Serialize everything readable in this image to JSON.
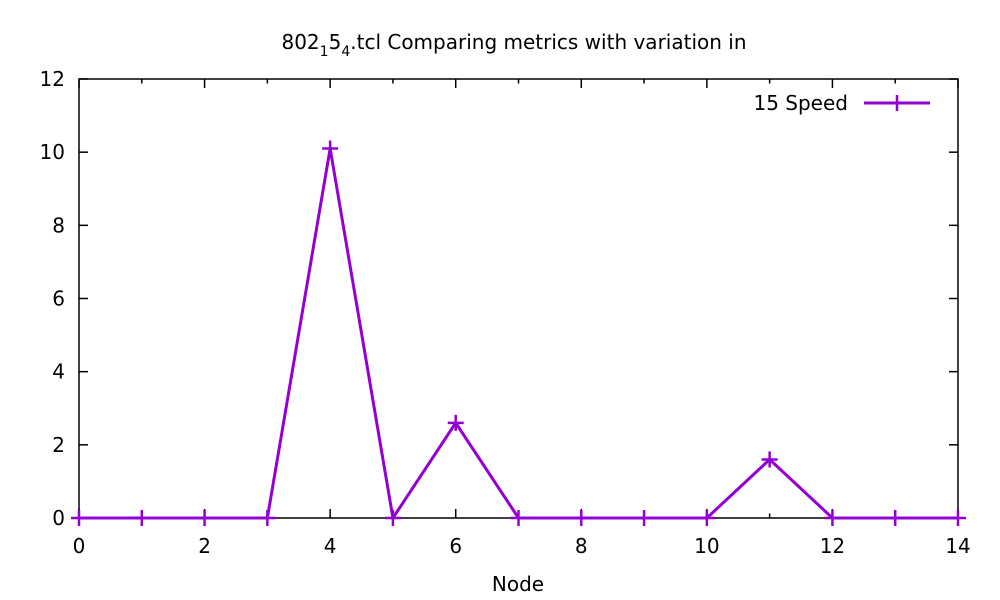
{
  "chart_data": {
    "type": "line",
    "title_parts": {
      "base": "802",
      "sub1": "1",
      "mid": "5",
      "sub2": "4",
      "rest": ".tcl Comparing metrics with variation in"
    },
    "xlabel": "Node",
    "ylabel": "",
    "xlim": [
      0,
      14
    ],
    "ylim": [
      0,
      12
    ],
    "xticks": [
      0,
      2,
      4,
      6,
      8,
      10,
      12,
      14
    ],
    "yticks": [
      0,
      2,
      4,
      6,
      8,
      10,
      12
    ],
    "grid": false,
    "legend_position": "top-right",
    "series": [
      {
        "name": "15 Speed",
        "color": "#9400d3",
        "marker": "plus",
        "x": [
          0,
          1,
          2,
          3,
          4,
          5,
          6,
          7,
          8,
          9,
          10,
          11,
          12,
          13,
          14
        ],
        "y": [
          0,
          0,
          0,
          0,
          10.1,
          0,
          2.6,
          0,
          0,
          0,
          0,
          1.6,
          0,
          0,
          0
        ]
      }
    ]
  }
}
